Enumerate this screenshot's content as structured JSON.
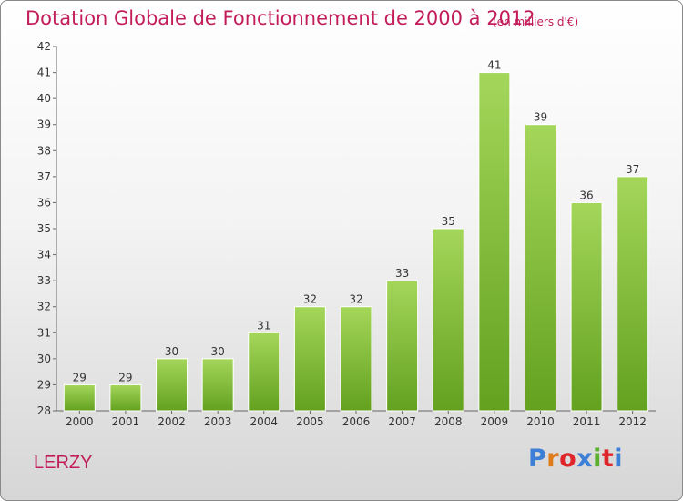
{
  "header": {
    "title": "Dotation Globale de Fonctionnement de 2000 à 2012",
    "unit": "(en milliers d'€)"
  },
  "footer": {
    "commune": "LERZY",
    "logo_text": "Proxiti",
    "logo_colors": [
      "#3d7fd6",
      "#e07b1a",
      "#e0262b",
      "#3d7fd6",
      "#5cae2e",
      "#e0262b",
      "#3d7fd6"
    ]
  },
  "colors": {
    "accent": "#c21d5a",
    "bar_light": "#a4d65a",
    "bar_dark": "#63a11f"
  },
  "chart_data": {
    "type": "bar",
    "title": "Dotation Globale de Fonctionnement de 2000 à 2012",
    "xlabel": "",
    "ylabel": "",
    "categories": [
      "2000",
      "2001",
      "2002",
      "2003",
      "2004",
      "2005",
      "2006",
      "2007",
      "2008",
      "2009",
      "2010",
      "2011",
      "2012"
    ],
    "values": [
      29,
      29,
      30,
      30,
      31,
      32,
      32,
      33,
      35,
      41,
      39,
      36,
      37
    ],
    "ylim": [
      28,
      42
    ],
    "yticks": [
      28,
      29,
      30,
      31,
      32,
      33,
      34,
      35,
      36,
      37,
      38,
      39,
      40,
      41,
      42
    ],
    "grid": false,
    "data_labels": true
  }
}
